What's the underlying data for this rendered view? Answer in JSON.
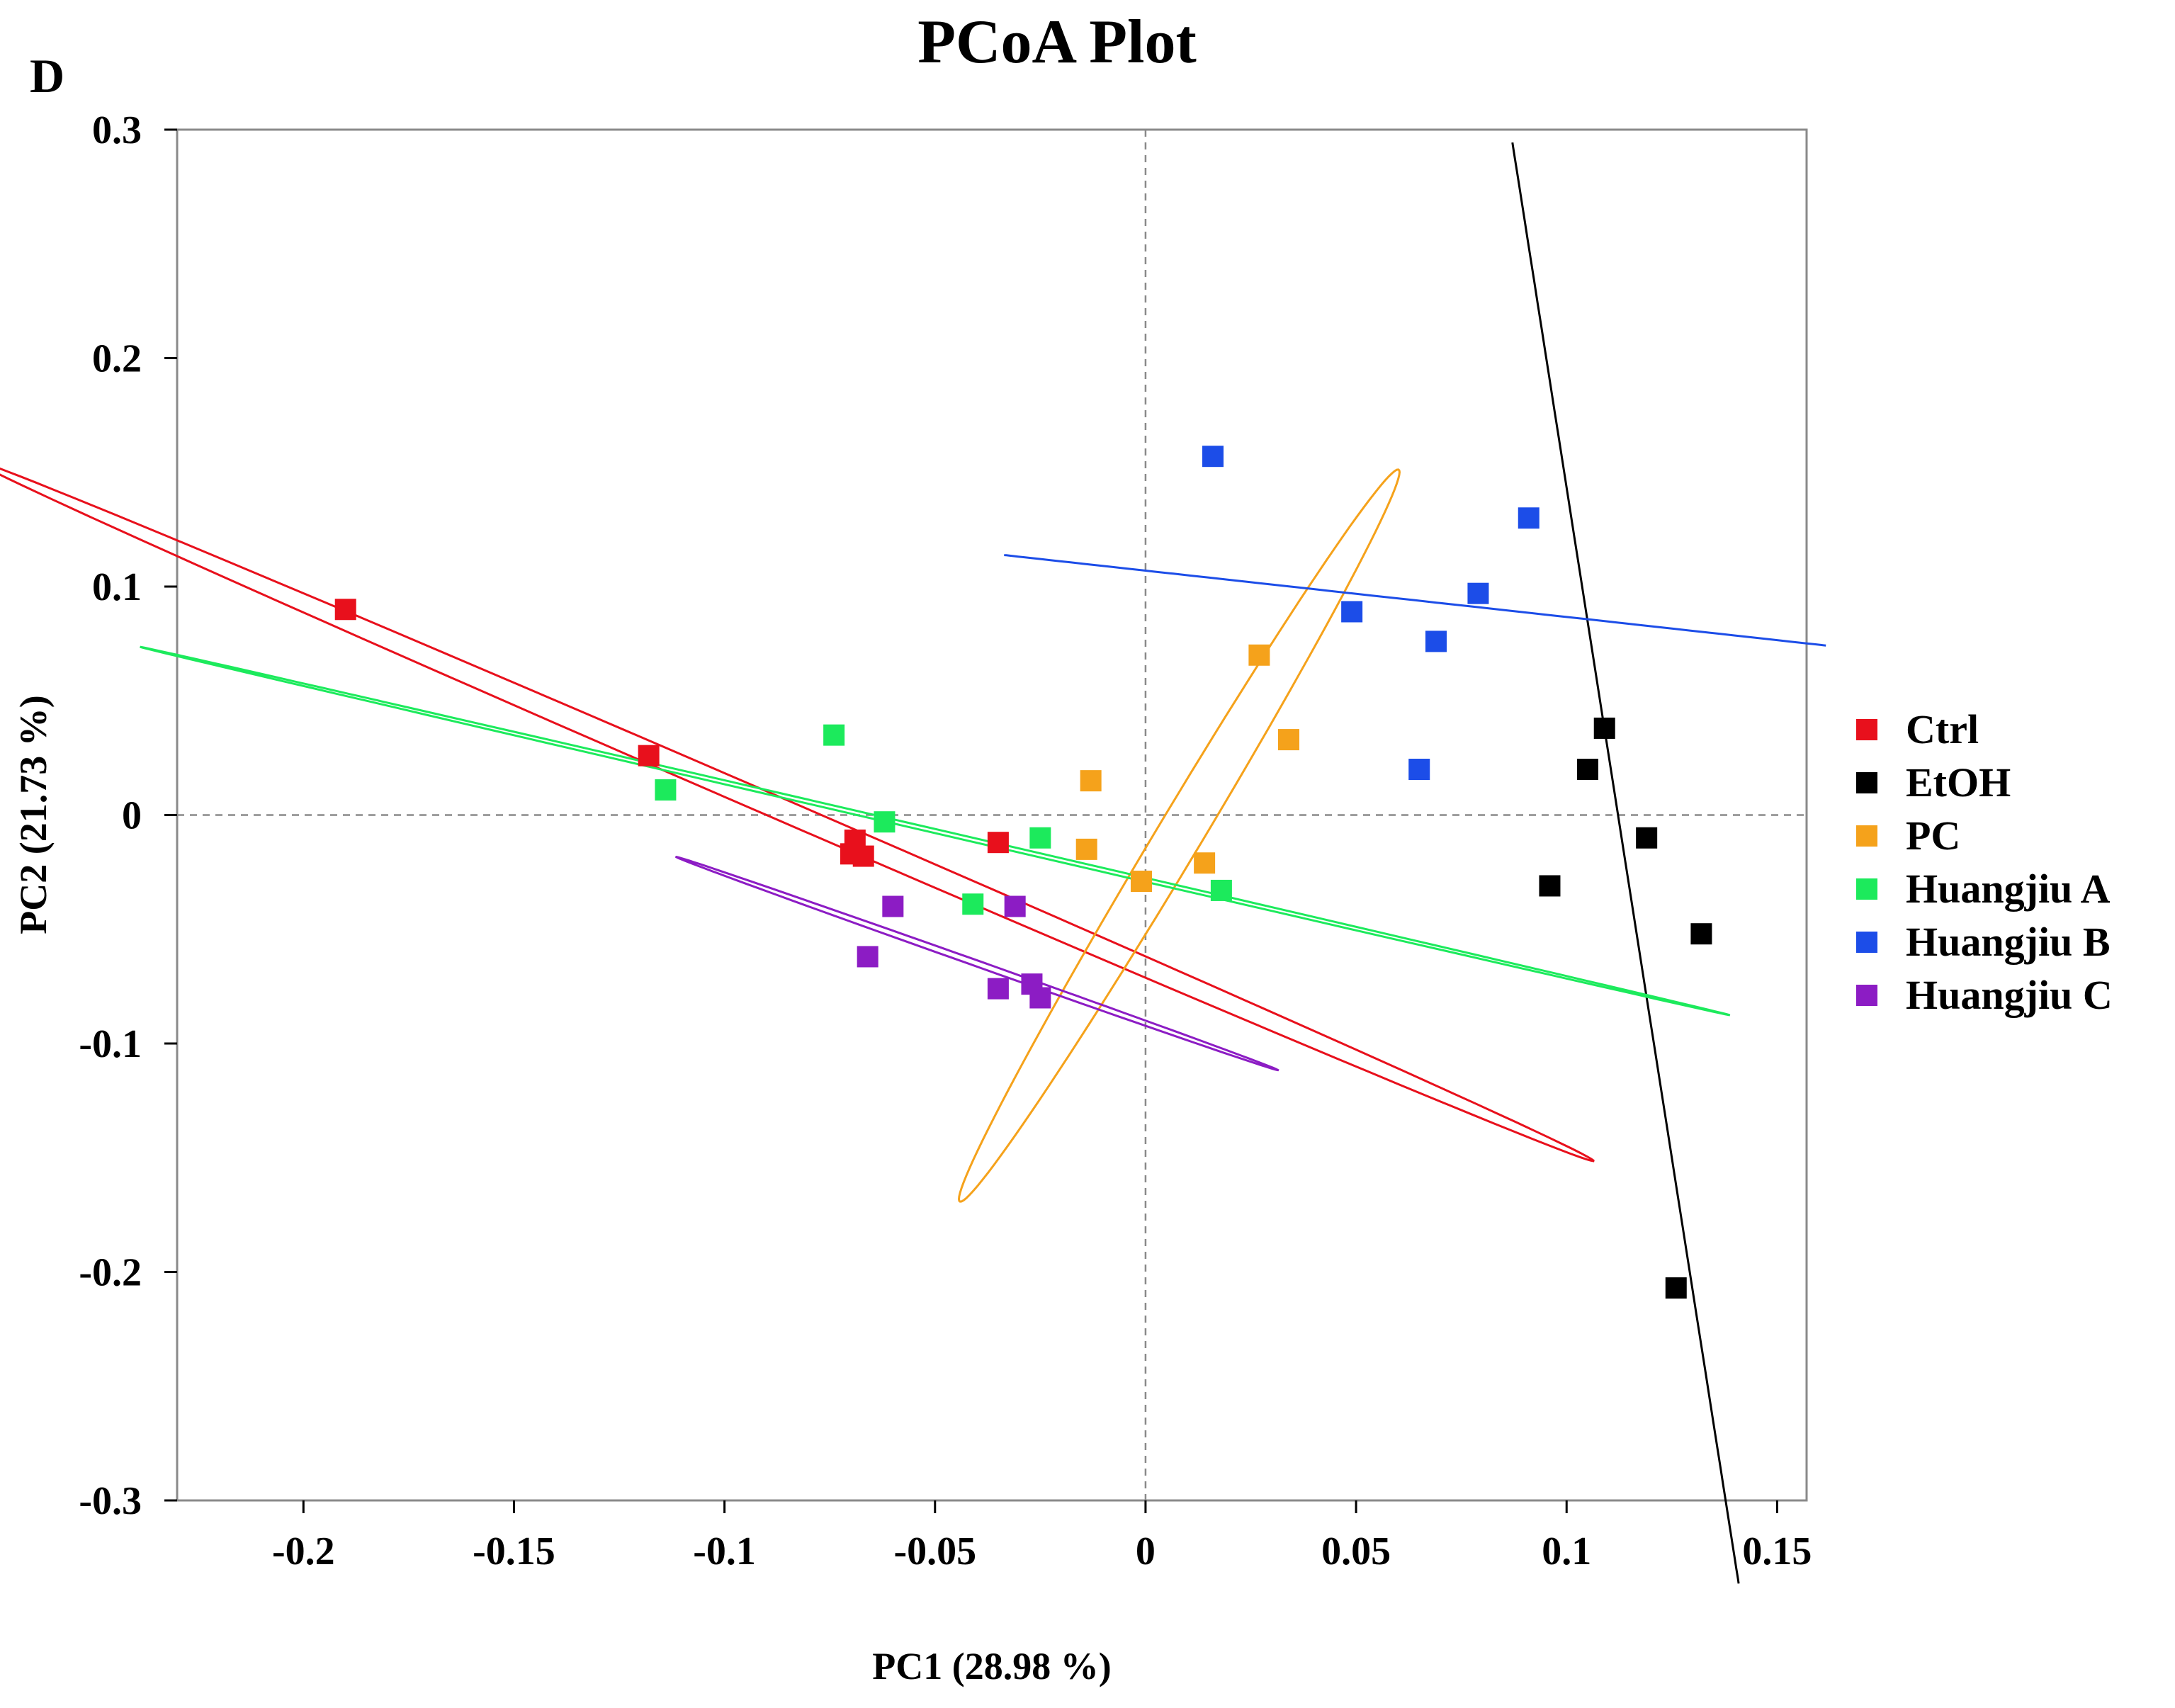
{
  "panel_label": "D",
  "chart_data": {
    "type": "scatter",
    "title": "PCoA Plot",
    "xlabel": "PC1 (28.98 %)",
    "ylabel": "PC2 (21.73 %)",
    "xlim": [
      -0.23,
      0.157
    ],
    "ylim": [
      -0.3,
      0.3
    ],
    "x_ticks": [
      -0.2,
      -0.15,
      -0.1,
      -0.05,
      0,
      0.05,
      0.1,
      0.15
    ],
    "x_tick_labels": [
      "-0.2",
      "-0.15",
      "-0.1",
      "-0.05",
      "0",
      "0.05",
      "0.1",
      "0.15"
    ],
    "y_ticks": [
      0.3,
      0.2,
      0.1,
      0,
      -0.1,
      -0.2,
      -0.3
    ],
    "y_tick_labels": [
      "0.3",
      "0.2",
      "0.1",
      "0",
      "-0.1",
      "-0.2",
      "-0.3"
    ],
    "reference_lines": {
      "x": 0,
      "y": 0,
      "style": "dashed"
    },
    "legend_position": "right",
    "series": [
      {
        "name": "Ctrl",
        "color": "#e8101c",
        "points": [
          [
            -0.19,
            0.09
          ],
          [
            -0.118,
            0.026
          ],
          [
            -0.069,
            -0.011
          ],
          [
            -0.07,
            -0.017
          ],
          [
            -0.067,
            -0.018
          ],
          [
            -0.035,
            -0.012
          ]
        ],
        "ellipse": {
          "center": [
            -0.086,
            0.002
          ],
          "points": [
            [
              -0.226,
              0.11
            ],
            [
              0.046,
              -0.107
            ]
          ]
        }
      },
      {
        "name": "EtOH",
        "color": "#000000",
        "points": [
          [
            0.109,
            0.038
          ],
          [
            0.105,
            0.02
          ],
          [
            0.119,
            -0.01
          ],
          [
            0.096,
            -0.031
          ],
          [
            0.132,
            -0.052
          ],
          [
            0.126,
            -0.207
          ]
        ],
        "ellipse": {
          "center": [
            0.114,
            -0.021
          ],
          "points": [
            [
              0.095,
              0.202
            ],
            [
              0.133,
              -0.244
            ]
          ]
        }
      },
      {
        "name": "PC",
        "color": "#f5a21b",
        "points": [
          [
            0.027,
            0.07
          ],
          [
            0.034,
            0.033
          ],
          [
            -0.013,
            0.015
          ],
          [
            -0.014,
            -0.015
          ],
          [
            -0.001,
            -0.029
          ],
          [
            0.014,
            -0.021
          ]
        ],
        "ellipse": {
          "center": [
            0.008,
            -0.009
          ],
          "points": [
            [
              0.045,
              0.117
            ],
            [
              -0.029,
              -0.108
            ]
          ]
        }
      },
      {
        "name": "Huangjiu A",
        "color": "#1cea5c",
        "points": [
          [
            -0.074,
            0.035
          ],
          [
            -0.114,
            0.011
          ],
          [
            -0.062,
            -0.003
          ],
          [
            -0.025,
            -0.01
          ],
          [
            -0.041,
            -0.039
          ],
          [
            0.018,
            -0.033
          ]
        ],
        "ellipse": {
          "center": [
            -0.05,
            -0.007
          ],
          "points": [
            [
              -0.182,
              0.05
            ],
            [
              0.085,
              -0.064
            ]
          ]
        }
      },
      {
        "name": "Huangjiu B",
        "color": "#1c4de8",
        "points": [
          [
            0.016,
            0.157
          ],
          [
            0.091,
            0.13
          ],
          [
            0.049,
            0.089
          ],
          [
            0.079,
            0.097
          ],
          [
            0.069,
            0.076
          ],
          [
            0.065,
            0.02
          ]
        ],
        "ellipse": {
          "center": [
            0.064,
            0.094
          ],
          "points": [
            [
              -0.005,
              0.108
            ],
            [
              0.133,
              0.08
            ]
          ]
        }
      },
      {
        "name": "Huangjiu C",
        "color": "#8c1cc4",
        "points": [
          [
            -0.06,
            -0.04
          ],
          [
            -0.031,
            -0.04
          ],
          [
            -0.066,
            -0.062
          ],
          [
            -0.035,
            -0.076
          ],
          [
            -0.027,
            -0.074
          ],
          [
            -0.025,
            -0.08
          ]
        ],
        "ellipse": {
          "center": [
            -0.04,
            -0.065
          ],
          "points": [
            [
              -0.089,
              -0.032
            ],
            [
              0.012,
              -0.098
            ]
          ]
        }
      }
    ]
  }
}
